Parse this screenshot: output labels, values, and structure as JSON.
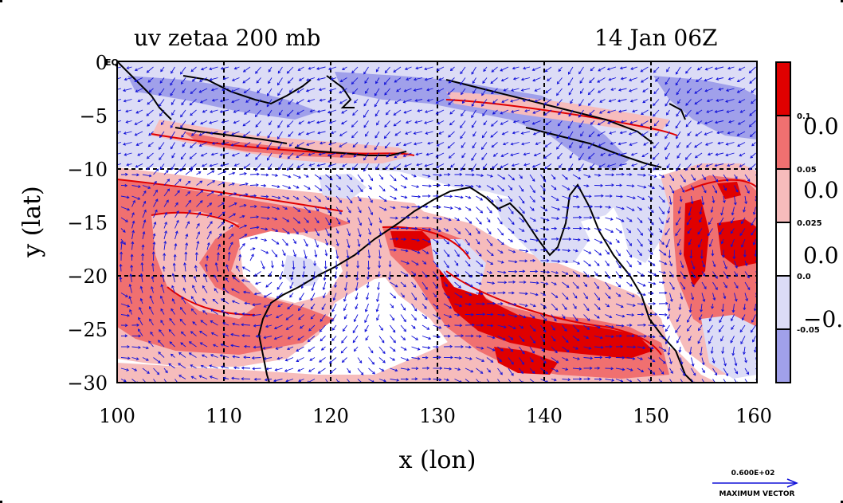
{
  "title_left": "uv zetaa 200 mb",
  "title_right": "14 Jan 06Z",
  "eq_label": "EQ",
  "xlabel": "x (lon)",
  "ylabel": "y (lat)",
  "x_ticks": [
    "100",
    "110",
    "120",
    "130",
    "140",
    "150",
    "160"
  ],
  "y_ticks": [
    "0",
    "−5",
    "−10",
    "−15",
    "−20",
    "−25",
    "−30"
  ],
  "colorbar": {
    "small_labels": [
      "0.1",
      "0.05",
      "0.025",
      "0.0",
      "-0.05"
    ],
    "big_labels": [
      "0.0",
      "0.0",
      "0.0",
      "−0."
    ],
    "colors": [
      "#e00000",
      "#f07070",
      "#f6bcbc",
      "#ffffff",
      "#dcdcf6",
      "#a0a0ea"
    ]
  },
  "vector_key": {
    "value": "0.600E+02",
    "label": "MAXIMUM VECTOR"
  },
  "colors": {
    "strong_red": "#e00000",
    "mid_red": "#f07070",
    "light_red": "#f6bcbc",
    "light_blue": "#dcdcf6",
    "mid_blue": "#a0a0ea",
    "vector_blue": "#1010d8",
    "contour_red": "#e00000"
  }
}
